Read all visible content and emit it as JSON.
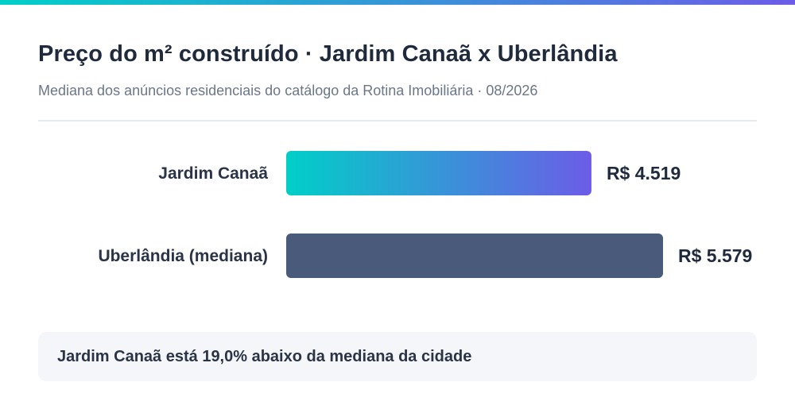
{
  "header": {
    "title": "Preço do m² construído · Jardim Canaã x Uberlândia",
    "subtitle": "Mediana dos anúncios residenciais do catálogo da Rotina Imobiliária · 08/2026"
  },
  "colors": {
    "accent_start": "#00cfc8",
    "accent_end": "#6c5ce7",
    "bar_neighborhood_start": "#00cfc8",
    "bar_neighborhood_end": "#6c5ce7",
    "bar_city": "#4a5a7b"
  },
  "chart_data": {
    "type": "bar",
    "orientation": "horizontal",
    "categories": [
      "Jardim Canaã",
      "Uberlândia (mediana)"
    ],
    "values": [
      4519,
      5579
    ],
    "value_labels": [
      "R$ 4.519",
      "R$ 5.579"
    ],
    "unit": "R$/m²",
    "xlim": [
      0,
      5579
    ],
    "grid": false,
    "legend": "none"
  },
  "note": {
    "text": "Jardim Canaã está 19,0% abaixo da mediana da cidade"
  }
}
